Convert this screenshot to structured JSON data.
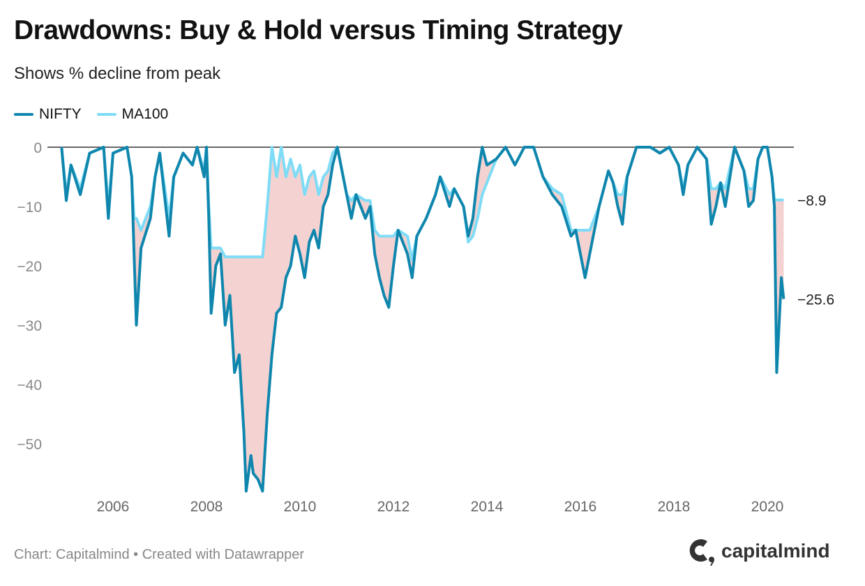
{
  "title": "Drawdowns: Buy & Hold versus Timing Strategy",
  "subtitle": "Shows % decline from peak",
  "footer": "Chart: Capitalmind • Created with Datawrapper",
  "logo": "capitalmind",
  "chart_data": {
    "type": "line",
    "title": "Drawdowns: Buy & Hold versus Timing Strategy",
    "subtitle": "Shows % decline from peak",
    "xlabel": "",
    "ylabel": "",
    "ylim": [
      -58,
      0
    ],
    "xlim": [
      2004.6,
      2020.8
    ],
    "y_ticks": [
      0,
      -10,
      -20,
      -30,
      -40,
      -50
    ],
    "y_tick_labels": [
      "0",
      "−10",
      "−20",
      "−30",
      "−40",
      "−50"
    ],
    "x_ticks": [
      2006,
      2008,
      2010,
      2012,
      2014,
      2016,
      2018,
      2020
    ],
    "x_tick_labels": [
      "2006",
      "2008",
      "2010",
      "2012",
      "2014",
      "2016",
      "2018",
      "2020"
    ],
    "legend_position": "top-left",
    "fill_between": {
      "color": "#f4d2d1",
      "between": [
        "NIFTY",
        "MA100"
      ]
    },
    "end_labels": [
      {
        "series": "MA100",
        "text": "−8.9",
        "value": -8.9
      },
      {
        "series": "NIFTY",
        "text": "−25.6",
        "value": -25.6
      }
    ],
    "x": [
      2004.9,
      2005.0,
      2005.1,
      2005.3,
      2005.5,
      2005.8,
      2005.9,
      2006.0,
      2006.3,
      2006.4,
      2006.45,
      2006.5,
      2006.6,
      2006.8,
      2006.9,
      2007.0,
      2007.2,
      2007.3,
      2007.5,
      2007.7,
      2007.8,
      2007.95,
      2008.0,
      2008.05,
      2008.1,
      2008.2,
      2008.3,
      2008.4,
      2008.5,
      2008.6,
      2008.7,
      2008.8,
      2008.85,
      2008.95,
      2009.0,
      2009.1,
      2009.2,
      2009.3,
      2009.4,
      2009.5,
      2009.6,
      2009.7,
      2009.8,
      2009.9,
      2010.0,
      2010.1,
      2010.2,
      2010.3,
      2010.4,
      2010.5,
      2010.6,
      2010.7,
      2010.8,
      2010.9,
      2011.0,
      2011.1,
      2011.2,
      2011.4,
      2011.5,
      2011.6,
      2011.7,
      2011.8,
      2011.9,
      2012.0,
      2012.1,
      2012.3,
      2012.4,
      2012.5,
      2012.7,
      2012.9,
      2013.0,
      2013.2,
      2013.3,
      2013.5,
      2013.6,
      2013.7,
      2013.8,
      2013.9,
      2014.0,
      2014.2,
      2014.4,
      2014.6,
      2014.8,
      2015.0,
      2015.2,
      2015.4,
      2015.6,
      2015.8,
      2015.9,
      2016.0,
      2016.1,
      2016.2,
      2016.4,
      2016.6,
      2016.7,
      2016.8,
      2016.9,
      2017.0,
      2017.2,
      2017.5,
      2017.7,
      2017.9,
      2018.1,
      2018.2,
      2018.3,
      2018.5,
      2018.7,
      2018.8,
      2018.9,
      2019.0,
      2019.1,
      2019.3,
      2019.5,
      2019.6,
      2019.7,
      2019.8,
      2019.9,
      2020.0,
      2020.1,
      2020.15,
      2020.2,
      2020.25,
      2020.3,
      2020.35
    ],
    "series": [
      {
        "name": "MA100",
        "color": "#7fdcf6",
        "values": [
          0,
          -8,
          -3,
          -7,
          -1,
          0,
          -10,
          -1,
          0,
          -5,
          -12,
          -12,
          -14,
          -10,
          -5,
          -1,
          -12,
          -5,
          -1,
          -3,
          0,
          -4,
          0,
          -10,
          -17,
          -17,
          -17,
          -18.5,
          -18.5,
          -18.5,
          -18.5,
          -18.5,
          -18.5,
          -18.5,
          -18.5,
          -18.5,
          -18.5,
          -10,
          0,
          -5,
          0,
          -5,
          -2,
          -5,
          -3,
          -8,
          -5,
          -4,
          -8,
          -5,
          -4,
          -1,
          0,
          -4,
          -8,
          -9,
          -8,
          -9,
          -9,
          -14,
          -15,
          -15,
          -15,
          -15,
          -14,
          -15,
          -19,
          -15,
          -12,
          -8,
          -5,
          -8,
          -7,
          -10,
          -16,
          -15,
          -12,
          -8,
          -6,
          -2,
          0,
          -3,
          0,
          0,
          -5,
          -7,
          -8,
          -14,
          -14,
          -14,
          -14,
          -14,
          -10,
          -4,
          -6,
          -8,
          -8,
          -5,
          0,
          0,
          -1,
          0,
          -3,
          -7,
          -3,
          0,
          -2,
          -7,
          -7,
          -6,
          -7,
          0,
          -4,
          -7,
          -7,
          -2,
          0,
          0,
          -5,
          -8.9,
          -8.9,
          -8.9,
          -8.9,
          -8.9
        ]
      },
      {
        "name": "NIFTY",
        "color": "#0f86ad",
        "values": [
          0,
          -9,
          -3,
          -8,
          -1,
          0,
          -12,
          -1,
          0,
          -5,
          -18,
          -30,
          -17,
          -12,
          -5,
          -1,
          -15,
          -5,
          -1,
          -3,
          0,
          -5,
          0,
          -12,
          -28,
          -20,
          -18,
          -30,
          -25,
          -38,
          -35,
          -48,
          -58,
          -52,
          -55,
          -56,
          -58,
          -45,
          -35,
          -28,
          -27,
          -22,
          -20,
          -15,
          -18,
          -22,
          -16,
          -14,
          -17,
          -10,
          -8,
          -3,
          0,
          -4,
          -8,
          -12,
          -8,
          -12,
          -10,
          -18,
          -22,
          -25,
          -27,
          -20,
          -14,
          -18,
          -22,
          -15,
          -12,
          -8,
          -5,
          -10,
          -7,
          -10,
          -15,
          -12,
          -5,
          0,
          -3,
          -2,
          0,
          -3,
          0,
          0,
          -5,
          -8,
          -10,
          -15,
          -14,
          -18,
          -22,
          -18,
          -10,
          -4,
          -6,
          -10,
          -13,
          -5,
          0,
          0,
          -1,
          0,
          -3,
          -8,
          -3,
          0,
          -2,
          -13,
          -10,
          -6,
          -10,
          0,
          -4,
          -10,
          -9,
          -2,
          0,
          0,
          -5,
          -10,
          -38,
          -30,
          -22,
          -25.6
        ]
      }
    ]
  }
}
